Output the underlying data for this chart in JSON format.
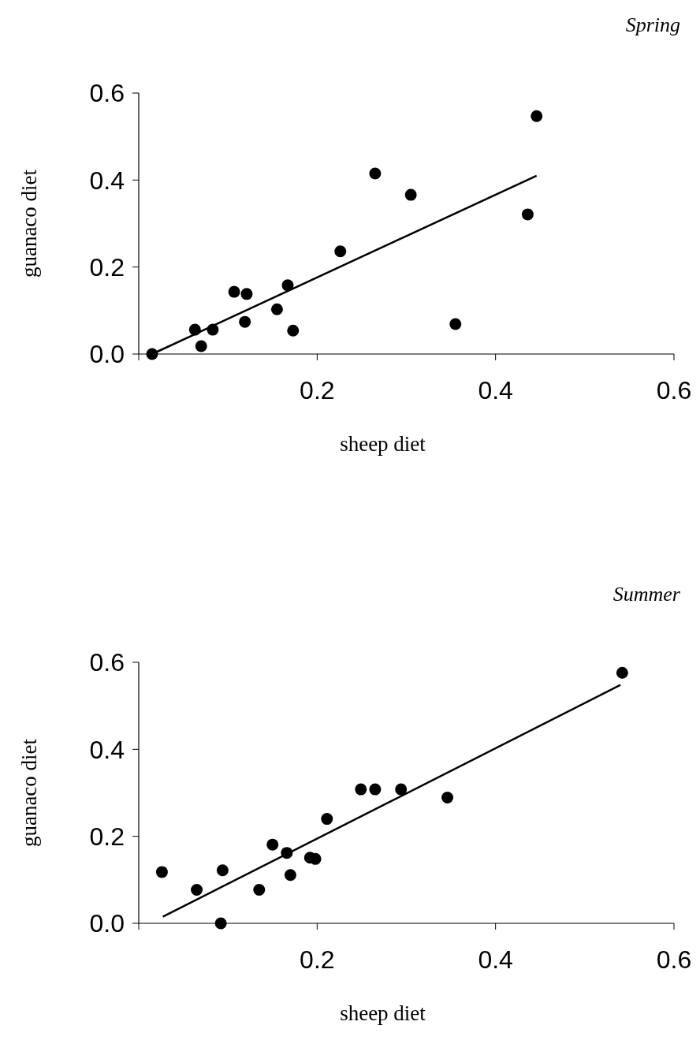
{
  "chart_data": [
    {
      "type": "scatter",
      "title": "Spring",
      "xlabel": "sheep diet",
      "ylabel": "guanaco diet",
      "xlim": [
        0,
        0.6
      ],
      "ylim": [
        0,
        0.6
      ],
      "xticks": [
        {
          "value": 0,
          "label": null
        },
        {
          "value": 0.2,
          "label": "0.2"
        },
        {
          "value": 0.4,
          "label": "0.4"
        },
        {
          "value": 0.6,
          "label": "0.6"
        }
      ],
      "yticks": [
        {
          "value": 0,
          "label": "0.0"
        },
        {
          "value": 0.2,
          "label": "0.2"
        },
        {
          "value": 0.4,
          "label": "0.4"
        },
        {
          "value": 0.6,
          "label": "0.6"
        }
      ],
      "series": [
        {
          "marker": "circle",
          "color": "#000000",
          "x": [
            0.015,
            0.063,
            0.07,
            0.083,
            0.107,
            0.121,
            0.119,
            0.155,
            0.167,
            0.173,
            0.226,
            0.265,
            0.305,
            0.355,
            0.436,
            0.446
          ],
          "values": [
            0,
            0.056,
            0.018,
            0.056,
            0.143,
            0.138,
            0.074,
            0.103,
            0.158,
            0.054,
            0.236,
            0.415,
            0.366,
            0.069,
            0.321,
            0.547
          ]
        },
        {
          "type": "line",
          "color": "#000000",
          "line_style": "solid",
          "x": [
            0.015,
            0.446
          ],
          "values": [
            0,
            0.41
          ]
        }
      ]
    },
    {
      "type": "scatter",
      "title": "Summer",
      "xlabel": "sheep diet",
      "ylabel": "guanaco diet",
      "xlim": [
        0,
        0.6
      ],
      "ylim": [
        0,
        0.6
      ],
      "xticks": [
        {
          "value": 0,
          "label": null
        },
        {
          "value": 0.2,
          "label": "0.2"
        },
        {
          "value": 0.4,
          "label": "0.4"
        },
        {
          "value": 0.6,
          "label": "0.6"
        }
      ],
      "yticks": [
        {
          "value": 0,
          "label": "0.0"
        },
        {
          "value": 0.2,
          "label": "0.2"
        },
        {
          "value": 0.4,
          "label": "0.4"
        },
        {
          "value": 0.6,
          "label": "0.6"
        }
      ],
      "series": [
        {
          "marker": "circle",
          "color": "#000000",
          "x": [
            0.026,
            0.065,
            0.094,
            0.092,
            0.135,
            0.15,
            0.166,
            0.17,
            0.192,
            0.198,
            0.211,
            0.249,
            0.265,
            0.294,
            0.346,
            0.542
          ],
          "values": [
            0.118,
            0.077,
            0.122,
            0,
            0.077,
            0.181,
            0.162,
            0.111,
            0.151,
            0.148,
            0.24,
            0.308,
            0.308,
            0.308,
            0.289,
            0.576
          ]
        },
        {
          "type": "line",
          "color": "#000000",
          "line_style": "solid",
          "x": [
            0.027,
            0.54
          ],
          "values": [
            0.015,
            0.548
          ]
        }
      ]
    }
  ]
}
